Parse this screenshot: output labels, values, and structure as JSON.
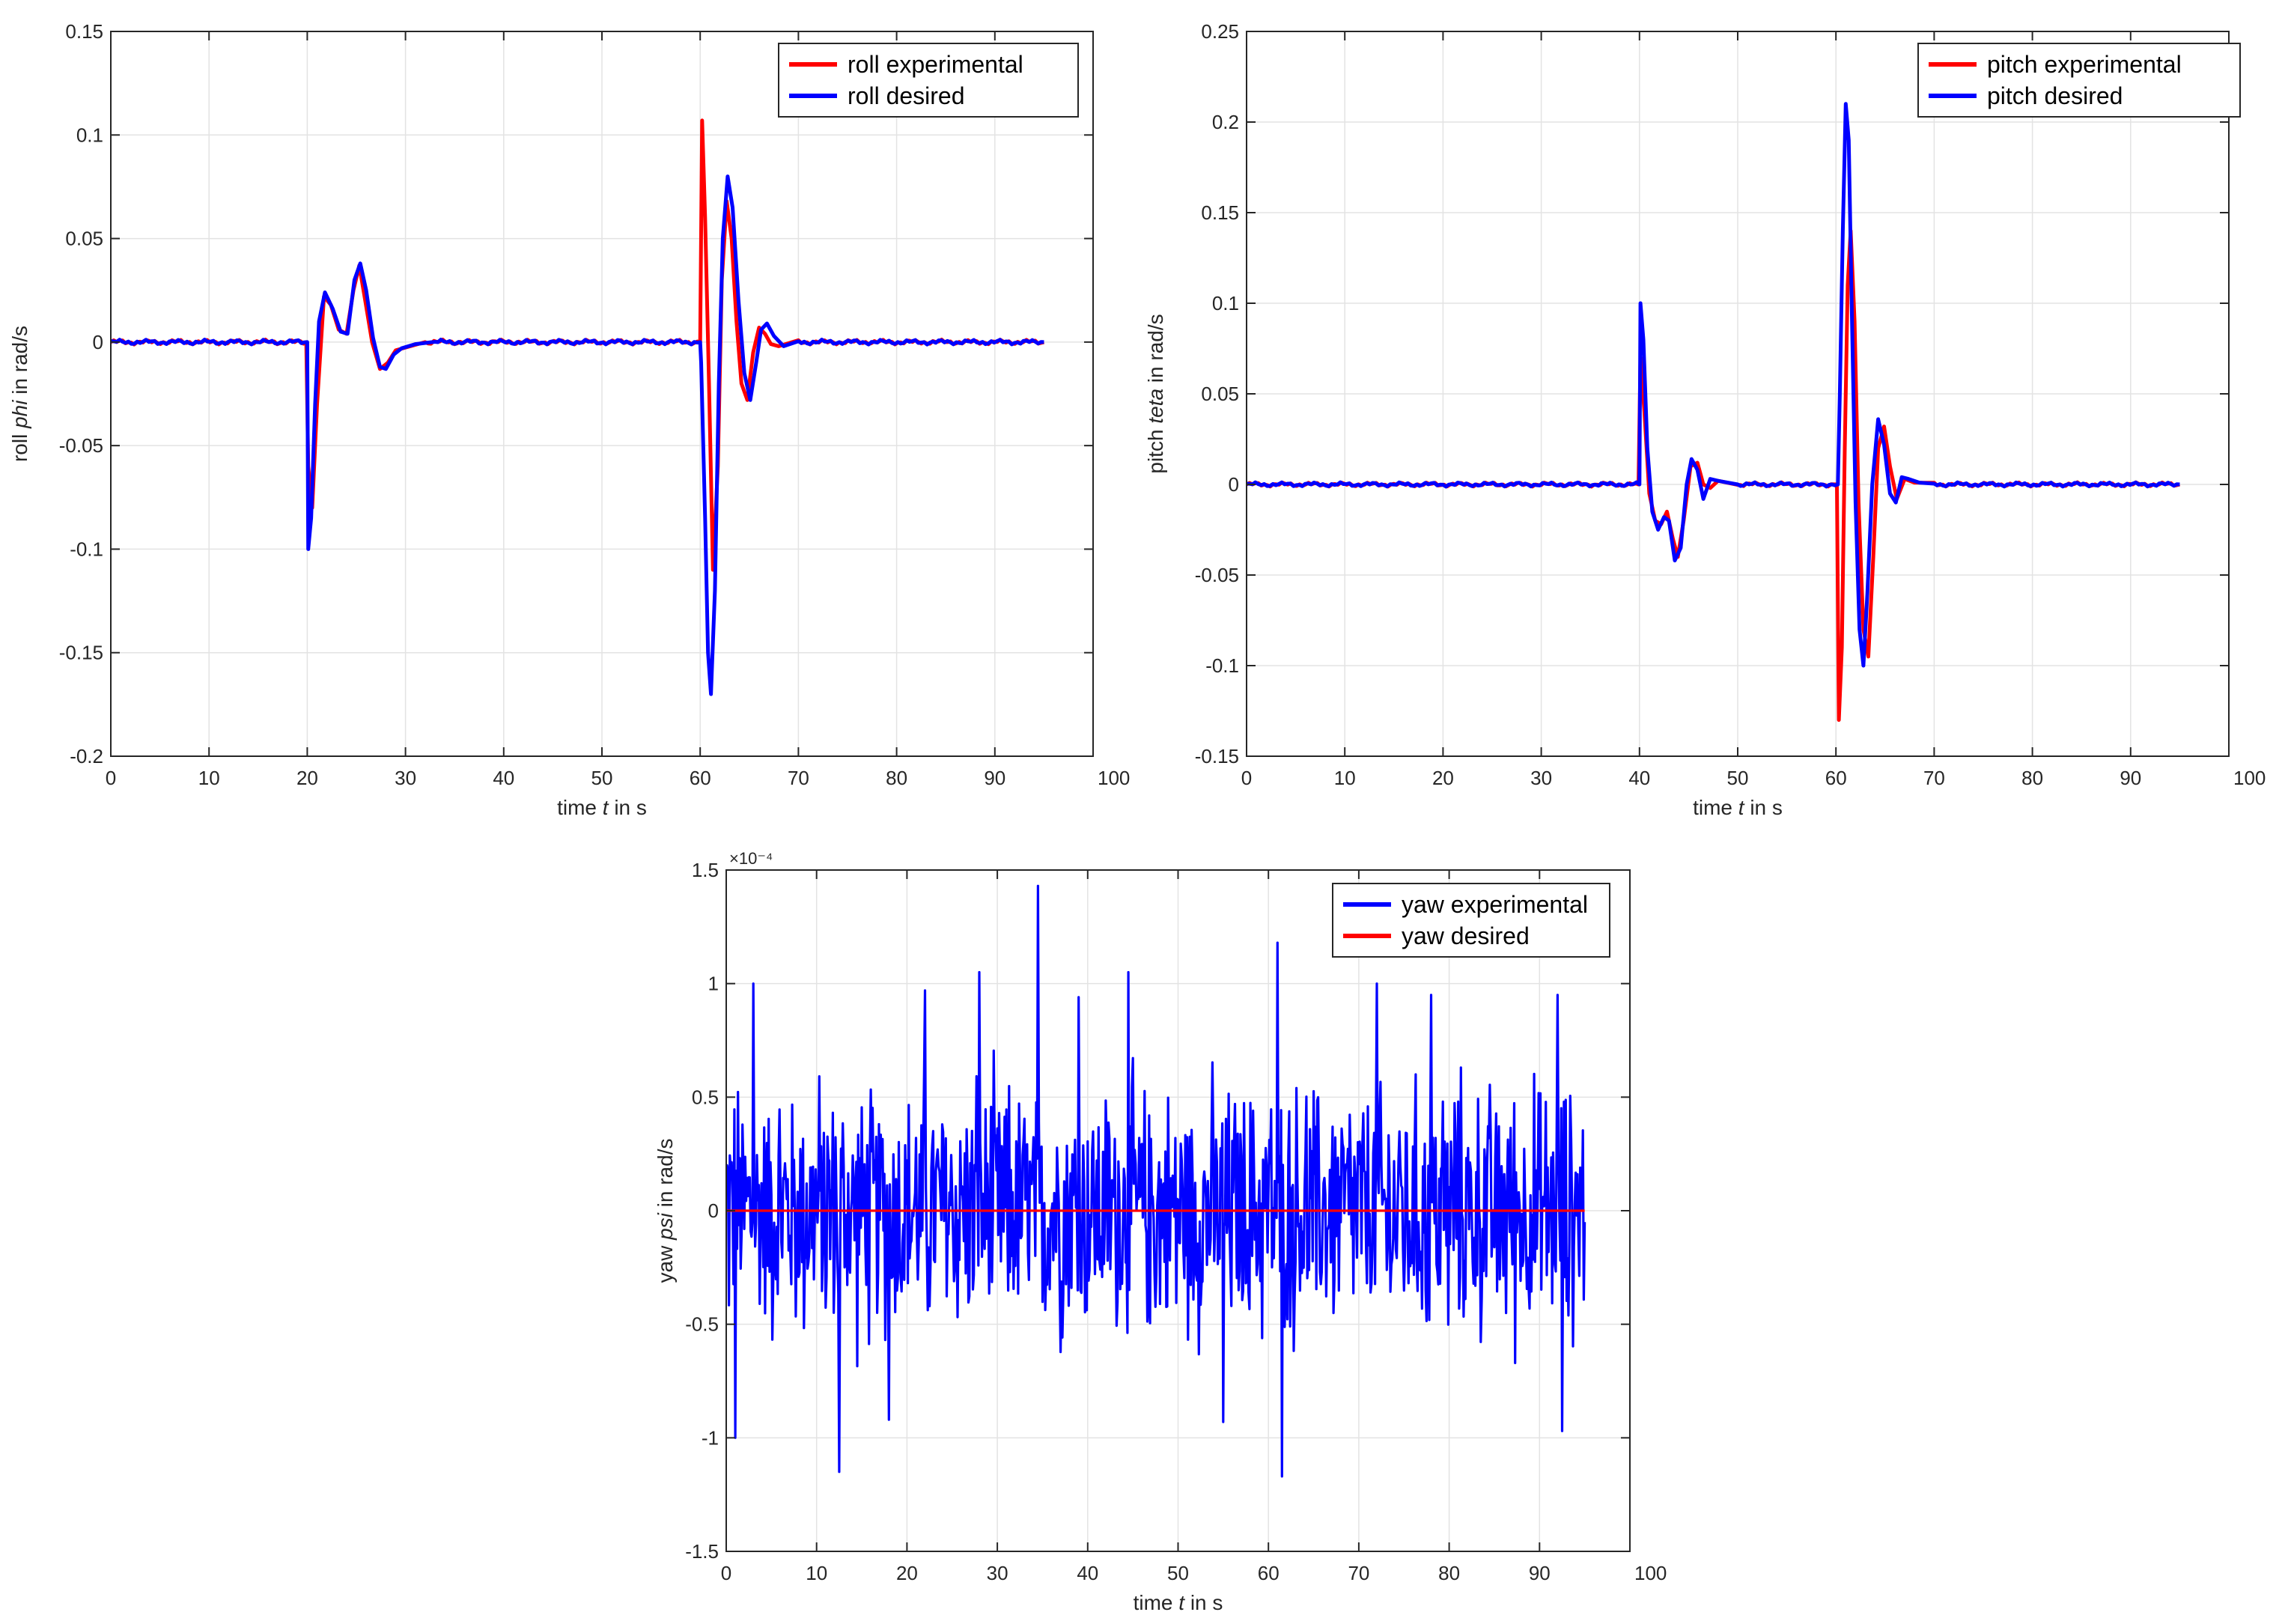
{
  "chart_data": [
    {
      "type": "line",
      "xlabel": {
        "prefix": "time ",
        "var": "t",
        "suffix": " in s"
      },
      "ylabel": {
        "prefix": "roll ",
        "var": "phi",
        "suffix": " in rad/s"
      },
      "xlim": [
        0,
        100
      ],
      "ylim": [
        -0.2,
        0.15
      ],
      "xticks": [
        0,
        10,
        20,
        30,
        40,
        50,
        60,
        70,
        80,
        90,
        100
      ],
      "xtick_labels": [
        "0",
        "10",
        "20",
        "30",
        "40",
        "50",
        "60",
        "70",
        "80",
        "90",
        "100"
      ],
      "yticks": [
        -0.2,
        -0.15,
        -0.1,
        -0.05,
        0,
        0.05,
        0.1,
        0.15
      ],
      "ytick_labels": [
        "-0.2",
        "-0.15",
        "-0.1",
        "-0.05",
        "0",
        "0.05",
        "0.1",
        "0.15"
      ],
      "grid": true,
      "legend_position": "top-right",
      "series": [
        {
          "name": "roll experimental",
          "color": "#ff0000",
          "x": [
            0,
            19.9,
            20.1,
            20.5,
            21.0,
            21.7,
            22.4,
            23.2,
            24.0,
            24.7,
            25.3,
            25.9,
            26.6,
            27.4,
            28.2,
            29.0,
            30.5,
            32,
            60.0,
            60.2,
            60.5,
            60.9,
            61.3,
            61.8,
            62.2,
            62.7,
            63.2,
            63.7,
            64.2,
            64.8,
            65.4,
            66.0,
            66.6,
            67.2,
            68.0,
            70,
            95
          ],
          "y": [
            0,
            0,
            -0.06,
            -0.08,
            -0.03,
            0.022,
            0.018,
            0.006,
            0.004,
            0.025,
            0.037,
            0.02,
            0.0,
            -0.013,
            -0.01,
            -0.004,
            -0.002,
            0,
            0,
            0.107,
            0.06,
            -0.02,
            -0.11,
            -0.06,
            0.03,
            0.068,
            0.05,
            0.01,
            -0.02,
            -0.028,
            -0.005,
            0.007,
            0.004,
            -0.001,
            -0.002,
            0,
            0
          ]
        },
        {
          "name": "roll desired",
          "color": "#0000ff",
          "x": [
            0,
            20.0,
            20.1,
            20.4,
            20.8,
            21.2,
            21.8,
            22.6,
            23.4,
            24.1,
            24.8,
            25.4,
            26.0,
            26.7,
            27.4,
            28.0,
            28.8,
            29.6,
            31,
            33,
            60.0,
            60.1,
            60.5,
            60.8,
            61.1,
            61.5,
            61.9,
            62.3,
            62.8,
            63.3,
            63.9,
            64.5,
            65.1,
            65.7,
            66.2,
            66.8,
            67.5,
            68.5,
            70,
            95
          ],
          "y": [
            0,
            0,
            -0.1,
            -0.085,
            -0.03,
            0.01,
            0.024,
            0.016,
            0.005,
            0.004,
            0.03,
            0.038,
            0.025,
            0.002,
            -0.012,
            -0.013,
            -0.006,
            -0.003,
            -0.001,
            0,
            0,
            -0.01,
            -0.085,
            -0.15,
            -0.17,
            -0.12,
            -0.02,
            0.05,
            0.08,
            0.065,
            0.02,
            -0.015,
            -0.028,
            -0.01,
            0.006,
            0.009,
            0.003,
            -0.002,
            0,
            0
          ]
        }
      ]
    },
    {
      "type": "line",
      "xlabel": {
        "prefix": "time ",
        "var": "t",
        "suffix": " in s"
      },
      "ylabel": {
        "prefix": "pitch ",
        "var": "teta",
        "suffix": " in rad/s"
      },
      "xlim": [
        0,
        100
      ],
      "ylim": [
        -0.15,
        0.25
      ],
      "xticks": [
        0,
        10,
        20,
        30,
        40,
        50,
        60,
        70,
        80,
        90,
        100
      ],
      "xtick_labels": [
        "0",
        "10",
        "20",
        "30",
        "40",
        "50",
        "60",
        "70",
        "80",
        "90",
        "100"
      ],
      "yticks": [
        -0.15,
        -0.1,
        -0.05,
        0,
        0.05,
        0.1,
        0.15,
        0.2,
        0.25
      ],
      "ytick_labels": [
        "-0.15",
        "-0.1",
        "-0.05",
        "0",
        "0.05",
        "0.1",
        "0.15",
        "0.2",
        "0.25"
      ],
      "grid": true,
      "legend_position": "top-right",
      "series": [
        {
          "name": "pitch experimental",
          "color": "#ff0000",
          "x": [
            0,
            39.9,
            40.1,
            40.5,
            41.0,
            41.6,
            42.2,
            42.8,
            43.4,
            43.9,
            44.5,
            45.2,
            45.9,
            46.5,
            47.2,
            48,
            50,
            60.1,
            60.3,
            60.6,
            60.9,
            61.2,
            61.5,
            61.9,
            62.3,
            62.8,
            63.3,
            63.8,
            64.3,
            64.9,
            65.5,
            66.2,
            67,
            68,
            70,
            95
          ],
          "y": [
            0,
            0,
            0.07,
            0.04,
            -0.005,
            -0.02,
            -0.022,
            -0.015,
            -0.03,
            -0.04,
            -0.02,
            0.01,
            0.012,
            0.0,
            -0.002,
            0.002,
            0,
            0,
            -0.13,
            -0.09,
            0.02,
            0.11,
            0.14,
            0.09,
            -0.01,
            -0.08,
            -0.095,
            -0.04,
            0.02,
            0.032,
            0.01,
            -0.008,
            0.003,
            0.001,
            0,
            0
          ]
        },
        {
          "name": "pitch desired",
          "color": "#0000ff",
          "x": [
            0,
            40.0,
            40.1,
            40.4,
            40.8,
            41.3,
            41.9,
            42.5,
            43.0,
            43.6,
            44.2,
            44.8,
            45.3,
            45.9,
            46.5,
            47.2,
            48,
            50,
            60.2,
            60.4,
            60.7,
            61.0,
            61.3,
            61.6,
            62.0,
            62.4,
            62.8,
            63.2,
            63.7,
            64.3,
            64.9,
            65.5,
            66.1,
            66.7,
            67.4,
            68.5,
            70,
            95
          ],
          "y": [
            0,
            0,
            0.1,
            0.08,
            0.02,
            -0.015,
            -0.025,
            -0.018,
            -0.02,
            -0.042,
            -0.035,
            0.0,
            0.014,
            0.008,
            -0.008,
            0.003,
            0.002,
            0,
            0,
            0.05,
            0.14,
            0.21,
            0.19,
            0.1,
            -0.01,
            -0.08,
            -0.1,
            -0.06,
            0.0,
            0.036,
            0.022,
            -0.005,
            -0.01,
            0.004,
            0.003,
            0.001,
            0,
            0
          ]
        }
      ]
    },
    {
      "type": "line",
      "xlabel": {
        "prefix": "time ",
        "var": "t",
        "suffix": " in s"
      },
      "ylabel": {
        "prefix": "yaw ",
        "var": "psi",
        "suffix": " in rad/s"
      },
      "y_scale_exponent": "×10⁻⁴",
      "xlim": [
        0,
        100
      ],
      "ylim": [
        -1.5,
        1.5
      ],
      "xticks": [
        0,
        10,
        20,
        30,
        40,
        50,
        60,
        70,
        80,
        90,
        100
      ],
      "xtick_labels": [
        "0",
        "10",
        "20",
        "30",
        "40",
        "50",
        "60",
        "70",
        "80",
        "90",
        "100"
      ],
      "yticks": [
        -1.5,
        -1,
        -0.5,
        0,
        0.5,
        1,
        1.5
      ],
      "ytick_labels": [
        "-1.5",
        "-1",
        "-0.5",
        "0",
        "0.5",
        "1",
        "1.5"
      ],
      "grid": true,
      "legend_position": "top-right",
      "series": [
        {
          "name": "yaw experimental",
          "color": "#0000ff",
          "x_range": [
            0,
            95
          ],
          "n_points": 950,
          "amplitude_envelope": [
            -1.17,
            1.43
          ],
          "peaks": [
            {
              "x": 1.0,
              "y": -1.0
            },
            {
              "x": 3.0,
              "y": 1.0
            },
            {
              "x": 12.5,
              "y": -1.15
            },
            {
              "x": 34.5,
              "y": 1.43
            },
            {
              "x": 28.0,
              "y": 1.05
            },
            {
              "x": 61.0,
              "y": 1.18
            },
            {
              "x": 61.5,
              "y": -1.17
            },
            {
              "x": 44.5,
              "y": 1.05
            },
            {
              "x": 72.0,
              "y": 1.0
            },
            {
              "x": 92.0,
              "y": 0.95
            },
            {
              "x": 92.5,
              "y": -0.97
            },
            {
              "x": 22.0,
              "y": 0.97
            },
            {
              "x": 18.0,
              "y": -0.92
            },
            {
              "x": 39.0,
              "y": 0.94
            },
            {
              "x": 55.0,
              "y": -0.93
            },
            {
              "x": 78.0,
              "y": 0.95
            }
          ]
        },
        {
          "name": "yaw desired",
          "color": "#ff0000",
          "x": [
            0,
            95
          ],
          "y": [
            0,
            0
          ]
        }
      ]
    }
  ]
}
